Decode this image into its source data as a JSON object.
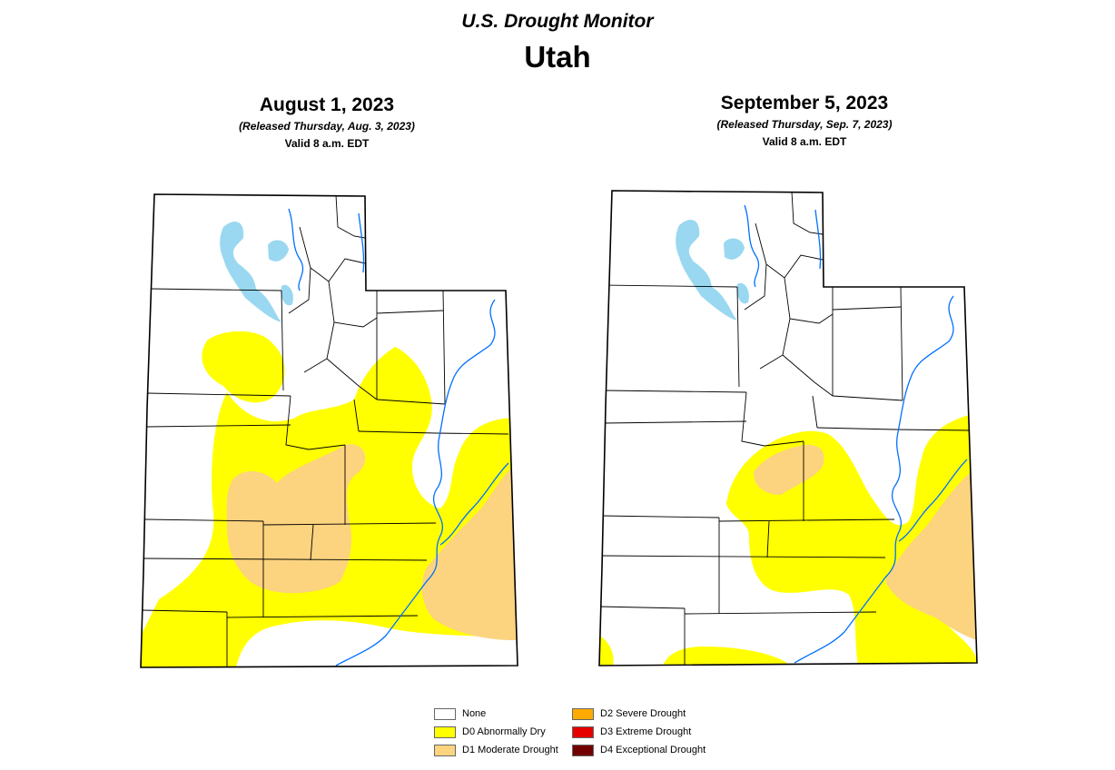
{
  "header": {
    "title": "U.S. Drought Monitor",
    "state": "Utah"
  },
  "maps": [
    {
      "date": "August 1, 2023",
      "released": "(Released Thursday, Aug. 3, 2023)",
      "valid": "Valid 8 a.m. EDT"
    },
    {
      "date": "September 5, 2023",
      "released": "(Released Thursday, Sep. 7, 2023)",
      "valid": "Valid 8 a.m. EDT"
    }
  ],
  "legend": [
    {
      "label": "None",
      "color": "#ffffff"
    },
    {
      "label": "D0 Abnormally Dry",
      "color": "#ffff00"
    },
    {
      "label": "D1 Moderate Drought",
      "color": "#fcd37f"
    },
    {
      "label": "D2 Severe Drought",
      "color": "#ffaa00"
    },
    {
      "label": "D3 Extreme Drought",
      "color": "#e60000"
    },
    {
      "label": "D4 Exceptional Drought",
      "color": "#730000"
    }
  ],
  "colors": {
    "water": "#99d8f0",
    "river": "#0070ff",
    "border": "#000000"
  }
}
